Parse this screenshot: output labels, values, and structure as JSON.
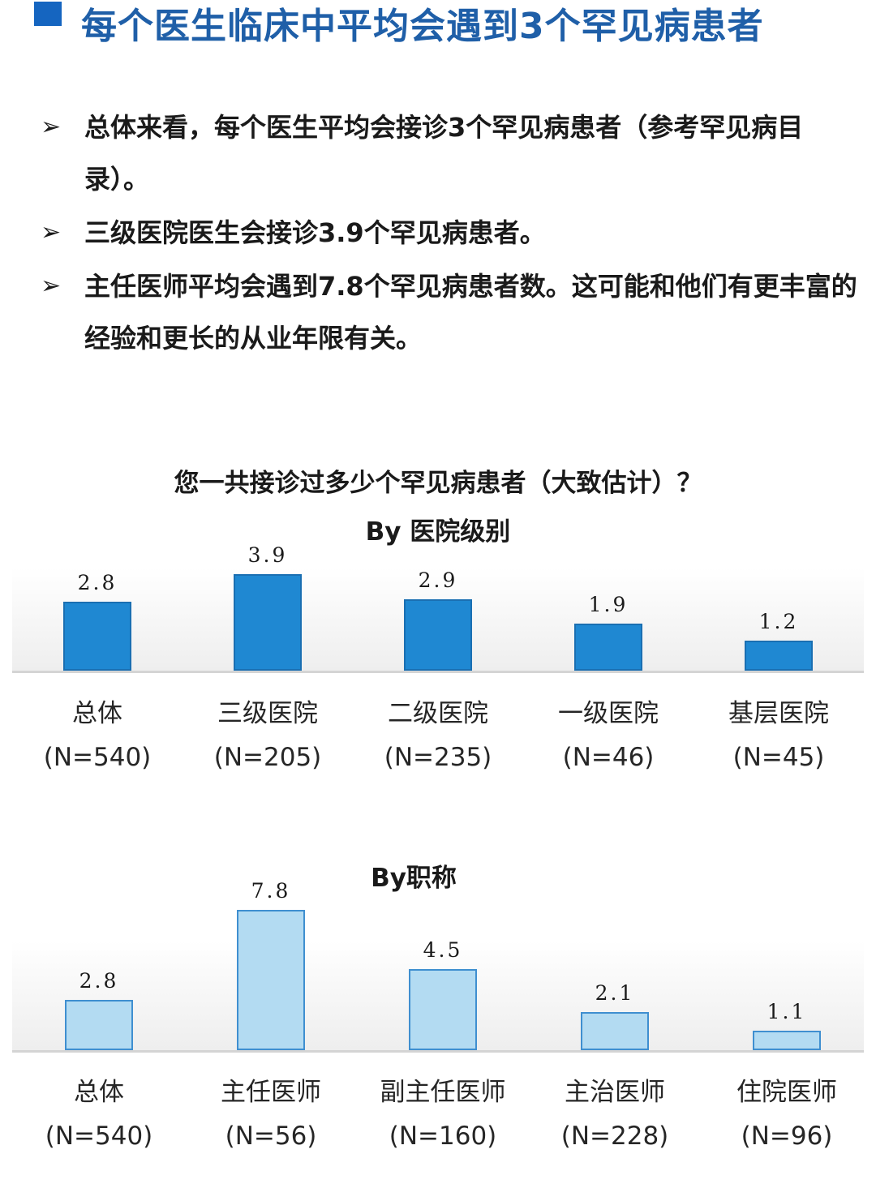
{
  "header": {
    "title": "每个医生临床中平均会遇到3个罕见病患者"
  },
  "bullets": [
    {
      "arrow": "➢",
      "text": "总体来看，每个医生平均会接诊3个罕见病患者（参考罕见病目录）。"
    },
    {
      "arrow": "➢",
      "text": "三级医院医生会接诊3.9个罕见病患者。"
    },
    {
      "arrow": "➢",
      "text": "主任医师平均会遇到7.8个罕见病患者数。这可能和他们有更丰富的经验和更长的从业年限有关。"
    }
  ],
  "main_question": "您一共接诊过多少个罕见病患者（大致估计）？",
  "colors": {
    "title_blue": "#1f5fa8",
    "bar1": "#1f88d2",
    "bar2": "#b3dbf2",
    "bar2_border": "#3f8fd0"
  },
  "chart_data": [
    {
      "type": "bar",
      "title": "By 医院级别",
      "categories": [
        "总体",
        "三级医院",
        "二级医院",
        "一级医院",
        "基层医院"
      ],
      "n_labels": [
        "(N=540)",
        "(N=205)",
        "(N=235)",
        "(N=46)",
        "(N=45)"
      ],
      "values": [
        2.8,
        3.9,
        2.9,
        1.9,
        1.2
      ],
      "value_labels": [
        "2.8",
        "3.9",
        "2.9",
        "1.9",
        "1.2"
      ],
      "ylim": [
        0,
        4
      ]
    },
    {
      "type": "bar",
      "title": "By职称",
      "categories": [
        "总体",
        "主任医师",
        "副主任医师",
        "主治医师",
        "住院医师"
      ],
      "n_labels": [
        "(N=540)",
        "(N=56)",
        "(N=160)",
        "(N=228)",
        "(N=96)"
      ],
      "values": [
        2.8,
        7.8,
        4.5,
        2.1,
        1.1
      ],
      "value_labels": [
        "2.8",
        "7.8",
        "4.5",
        "2.1",
        "1.1"
      ],
      "ylim": [
        0,
        8
      ]
    }
  ]
}
